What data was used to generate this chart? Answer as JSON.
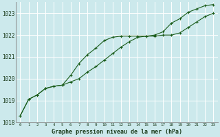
{
  "title": "Graphe pression niveau de la mer (hPa)",
  "bg_color": "#cce9ec",
  "grid_color": "#b0d8dc",
  "line_color": "#1a5c1a",
  "x_labels": [
    "0",
    "1",
    "2",
    "3",
    "4",
    "5",
    "6",
    "7",
    "8",
    "9",
    "10",
    "11",
    "12",
    "13",
    "14",
    "15",
    "16",
    "17",
    "18",
    "19",
    "20",
    "21",
    "22",
    "23"
  ],
  "line1": [
    1018.3,
    1019.05,
    1019.25,
    1019.55,
    1019.65,
    1019.7,
    1019.85,
    1020.0,
    1020.3,
    1020.55,
    1020.85,
    1021.15,
    1021.45,
    1021.7,
    1021.9,
    1021.95,
    1021.95,
    1022.0,
    1022.0,
    1022.1,
    1022.35,
    1022.6,
    1022.85,
    1023.0
  ],
  "line2": [
    1018.3,
    1019.05,
    1019.25,
    1019.55,
    1019.65,
    1019.7,
    1020.15,
    1020.7,
    1021.1,
    1021.4,
    1021.75,
    1021.9,
    1021.95,
    1021.95,
    1021.95,
    1021.95,
    1022.0,
    1022.15,
    1022.55,
    1022.75,
    1023.05,
    1023.2,
    1023.35,
    1023.4
  ],
  "ylim": [
    1018.0,
    1023.5
  ],
  "yticks": [
    1018,
    1019,
    1020,
    1021,
    1022,
    1023
  ],
  "xlim": [
    -0.5,
    23.5
  ]
}
